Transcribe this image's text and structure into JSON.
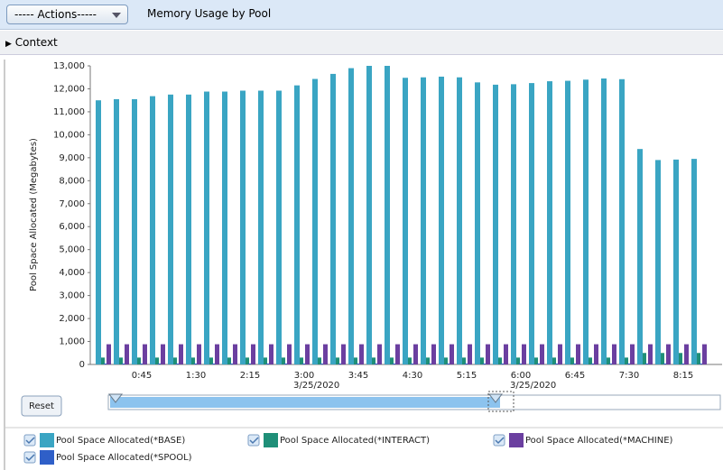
{
  "header": {
    "actions": "----- Actions-----",
    "title": "Memory Usage by Pool"
  },
  "context": "Context",
  "reset": "Reset",
  "chart_data": {
    "type": "bar",
    "y_label": "Pool Space Allocated (Megabytes)",
    "categories": [
      null,
      null,
      "0:45",
      null,
      null,
      "1:30",
      null,
      null,
      "2:15",
      null,
      null,
      "3:00",
      null,
      null,
      "3:45",
      null,
      null,
      "4:30",
      null,
      null,
      "5:15",
      null,
      null,
      "6:00",
      null,
      null,
      "6:45",
      null,
      null,
      "7:30",
      null,
      null,
      "8:15",
      null
    ],
    "category_dates": [
      null,
      null,
      null,
      null,
      null,
      null,
      null,
      null,
      null,
      null,
      null,
      "3/25/2020",
      null,
      null,
      null,
      null,
      null,
      null,
      null,
      null,
      null,
      null,
      null,
      "3/25/2020",
      null,
      null,
      null,
      null,
      null,
      null,
      null,
      null,
      null,
      null
    ],
    "series": [
      {
        "name": "Pool Space Allocated(*BASE)",
        "color": "#3aa5c3",
        "values": [
          11500,
          11550,
          11550,
          11680,
          11750,
          11750,
          11880,
          11880,
          11920,
          11920,
          11920,
          12150,
          12430,
          12650,
          12900,
          13000,
          13000,
          12480,
          12500,
          12530,
          12500,
          12280,
          12180,
          12200,
          12250,
          12330,
          12350,
          12400,
          12450,
          12420,
          9380,
          8900,
          8920,
          8950
        ]
      },
      {
        "name": "Pool Space Allocated(*INTERACT)",
        "color": "#1f8f78",
        "values": [
          300,
          300,
          300,
          300,
          300,
          300,
          300,
          300,
          300,
          300,
          300,
          300,
          300,
          300,
          300,
          300,
          300,
          300,
          300,
          300,
          300,
          300,
          300,
          300,
          300,
          300,
          300,
          300,
          300,
          300,
          500,
          500,
          500,
          500
        ]
      },
      {
        "name": "Pool Space Allocated(*MACHINE)",
        "color": "#6b3fa0",
        "values": [
          880,
          880,
          880,
          880,
          880,
          880,
          880,
          880,
          880,
          880,
          880,
          880,
          880,
          880,
          880,
          880,
          880,
          880,
          880,
          880,
          880,
          880,
          880,
          880,
          880,
          880,
          880,
          880,
          880,
          880,
          880,
          880,
          880,
          880
        ]
      },
      {
        "name": "Pool Space Allocated(*SPOOL)",
        "color": "#2f5fc8",
        "values": [
          40,
          40,
          40,
          40,
          40,
          40,
          40,
          40,
          40,
          40,
          40,
          40,
          40,
          40,
          40,
          40,
          40,
          40,
          40,
          40,
          40,
          40,
          40,
          40,
          40,
          40,
          40,
          40,
          40,
          40,
          40,
          40,
          40,
          40
        ]
      }
    ],
    "ylim": [
      0,
      13000
    ],
    "yticks": [
      0,
      {
        "value": 1000,
        "label": "1,000"
      },
      {
        "value": 2000,
        "label": "2,000"
      },
      {
        "value": 3000,
        "label": "3,000"
      },
      {
        "value": 4000,
        "label": "4,000"
      },
      {
        "value": 5000,
        "label": "5,000"
      },
      {
        "value": 6000,
        "label": "6,000"
      },
      {
        "value": 7000,
        "label": "7,000"
      },
      {
        "value": 8000,
        "label": "8,000"
      },
      {
        "value": 9000,
        "label": "9,000"
      },
      {
        "value": 10000,
        "label": "10,000"
      },
      {
        "value": 11000,
        "label": "11,000"
      },
      {
        "value": 12000,
        "label": "12,000"
      },
      {
        "value": 13000,
        "label": "13,000"
      }
    ],
    "grid": false
  }
}
